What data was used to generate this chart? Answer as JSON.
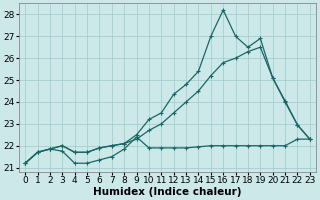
{
  "xlabel": "Humidex (Indice chaleur)",
  "xlim": [
    -0.5,
    23.5
  ],
  "ylim": [
    20.8,
    28.5
  ],
  "yticks": [
    21,
    22,
    23,
    24,
    25,
    26,
    27,
    28
  ],
  "xticks": [
    0,
    1,
    2,
    3,
    4,
    5,
    6,
    7,
    8,
    9,
    10,
    11,
    12,
    13,
    14,
    15,
    16,
    17,
    18,
    19,
    20,
    21,
    22,
    23
  ],
  "bg_color": "#cce8e8",
  "grid_color": "#99cccc",
  "line_color": "#1a6666",
  "line1_x": [
    0,
    1,
    2,
    3,
    4,
    5,
    6,
    7,
    8,
    9,
    10,
    11,
    12,
    13,
    14,
    15,
    16,
    17,
    18,
    19,
    20,
    21,
    22,
    23
  ],
  "line1_y": [
    21.2,
    21.7,
    21.85,
    21.75,
    21.2,
    21.2,
    21.35,
    21.5,
    21.85,
    22.4,
    21.9,
    21.9,
    21.9,
    21.9,
    21.95,
    22.0,
    22.0,
    22.0,
    22.0,
    22.0,
    22.0,
    22.0,
    22.3,
    22.3
  ],
  "line2_x": [
    0,
    1,
    2,
    3,
    4,
    5,
    6,
    7,
    8,
    9,
    10,
    11,
    12,
    13,
    14,
    15,
    16,
    17,
    18,
    19,
    20,
    21,
    22,
    23
  ],
  "line2_y": [
    21.2,
    21.7,
    21.85,
    22.0,
    21.7,
    21.7,
    21.9,
    22.0,
    22.1,
    22.3,
    22.7,
    23.0,
    23.5,
    24.0,
    24.5,
    25.2,
    25.8,
    26.0,
    26.3,
    26.5,
    25.1,
    24.0,
    22.95,
    22.3
  ],
  "line3_x": [
    0,
    1,
    2,
    3,
    4,
    5,
    6,
    7,
    8,
    9,
    10,
    11,
    12,
    13,
    14,
    15,
    16,
    17,
    18,
    19,
    20,
    21,
    22,
    23
  ],
  "line3_y": [
    21.2,
    21.7,
    21.85,
    22.0,
    21.7,
    21.7,
    21.9,
    22.0,
    22.1,
    22.5,
    23.2,
    23.5,
    24.35,
    24.8,
    25.4,
    27.0,
    28.2,
    27.0,
    26.5,
    26.9,
    25.1,
    24.05,
    22.95,
    22.3
  ],
  "tick_fontsize": 6.5,
  "label_fontsize": 7.5
}
